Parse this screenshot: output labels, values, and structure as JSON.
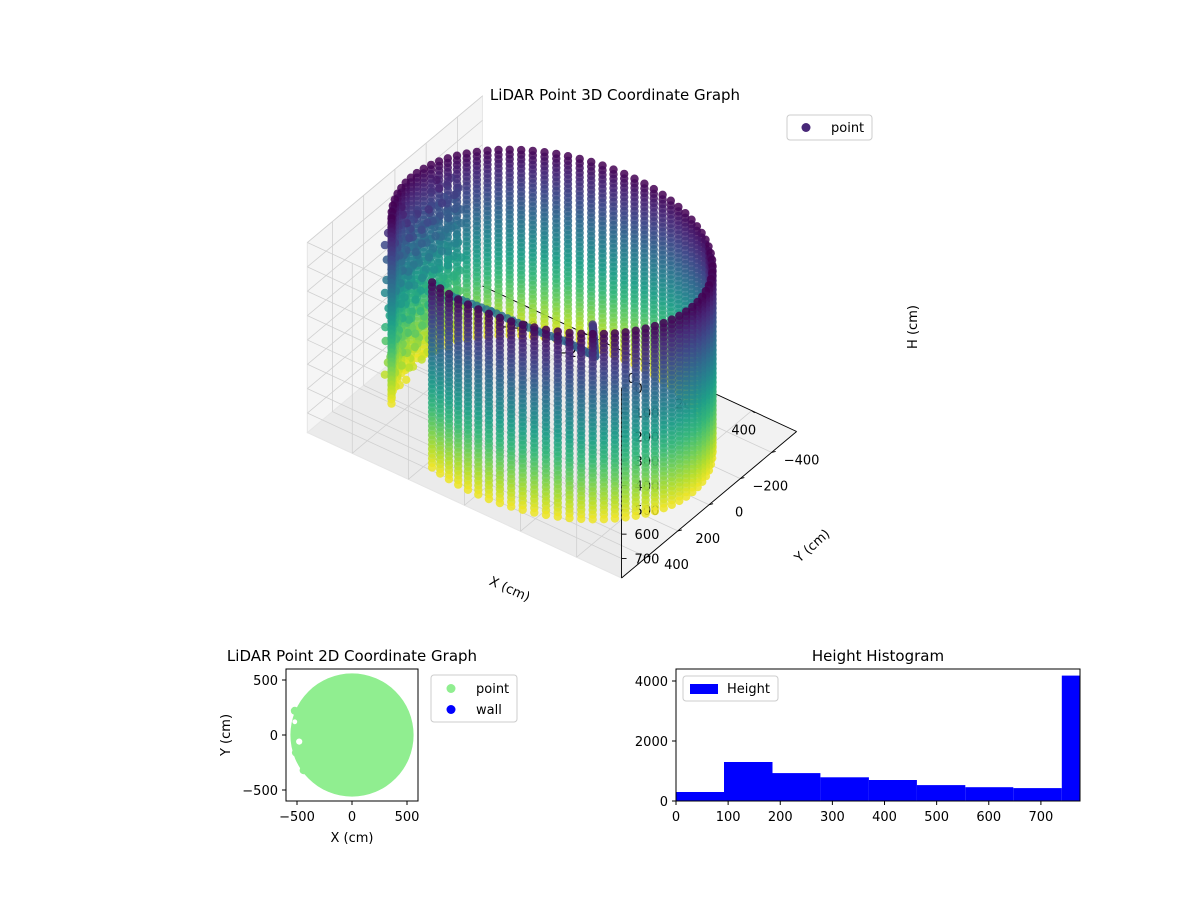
{
  "chart_data": [
    {
      "id": "lidar3d",
      "type": "scatter",
      "title": "LiDAR Point 3D Coordinate Graph",
      "xlabel": "X (cm)",
      "ylabel": "Y (cm)",
      "zlabel": "H (cm)",
      "xlim": [
        -560,
        560
      ],
      "ylim": [
        -560,
        560
      ],
      "zlim": [
        0,
        780
      ],
      "z_inverted": true,
      "x_ticks": [
        -400,
        -200,
        0,
        200,
        400
      ],
      "y_ticks": [
        -400,
        -200,
        0,
        200,
        400
      ],
      "z_ticks": [
        0,
        100,
        200,
        300,
        400,
        500,
        600,
        700
      ],
      "colormap": "viridis",
      "legend": {
        "position": "top-right",
        "entries": [
          "point"
        ]
      },
      "marker_color": "#482878",
      "cylinder": {
        "radius": 500,
        "h_min": 0,
        "h_max": 760,
        "angle_from_deg": -210,
        "angle_to_deg": 110
      },
      "wall": {
        "x_center": -470,
        "y_center": 0,
        "y_span": [
          -230,
          230
        ],
        "h_min": 50,
        "h_max": 760
      },
      "branch": {
        "points": [
          [
            -300,
            100,
            330
          ],
          [
            -150,
            120,
            300
          ],
          [
            20,
            150,
            270
          ],
          [
            150,
            170,
            240
          ],
          [
            260,
            190,
            230
          ],
          [
            250,
            180,
            170
          ],
          [
            240,
            170,
            120
          ]
        ]
      }
    },
    {
      "id": "lidar2d",
      "type": "scatter",
      "title": "LiDAR Point 2D Coordinate Graph",
      "xlabel": "X (cm)",
      "ylabel": "Y (cm)",
      "xlim": [
        -600,
        600
      ],
      "ylim": [
        -600,
        600
      ],
      "x_ticks": [
        -500,
        0,
        500
      ],
      "y_ticks": [
        -500,
        0,
        500
      ],
      "legend": {
        "position": "outside-right",
        "entries": [
          "point",
          "wall"
        ]
      },
      "series": [
        {
          "name": "point",
          "color": "#90ee90",
          "shape": "disk",
          "radius": 560
        },
        {
          "name": "wall",
          "color": "#0000ff"
        }
      ]
    },
    {
      "id": "height_hist",
      "type": "bar",
      "title": "Height Histogram",
      "xlim": [
        0,
        775
      ],
      "ylim": [
        0,
        4400
      ],
      "x_ticks": [
        0,
        100,
        200,
        300,
        400,
        500,
        600,
        700
      ],
      "y_ticks": [
        0,
        2000,
        4000
      ],
      "color": "#0000ff",
      "legend": {
        "position": "top-left",
        "entries": [
          "Height"
        ]
      },
      "bins": [
        {
          "from": 0,
          "to": 92,
          "count": 300
        },
        {
          "from": 92,
          "to": 185,
          "count": 1300
        },
        {
          "from": 185,
          "to": 277,
          "count": 930
        },
        {
          "from": 277,
          "to": 370,
          "count": 790
        },
        {
          "from": 370,
          "to": 462,
          "count": 700
        },
        {
          "from": 462,
          "to": 555,
          "count": 530
        },
        {
          "from": 555,
          "to": 647,
          "count": 460
        },
        {
          "from": 647,
          "to": 740,
          "count": 430
        },
        {
          "from": 740,
          "to": 775,
          "count": 4180
        }
      ]
    }
  ]
}
